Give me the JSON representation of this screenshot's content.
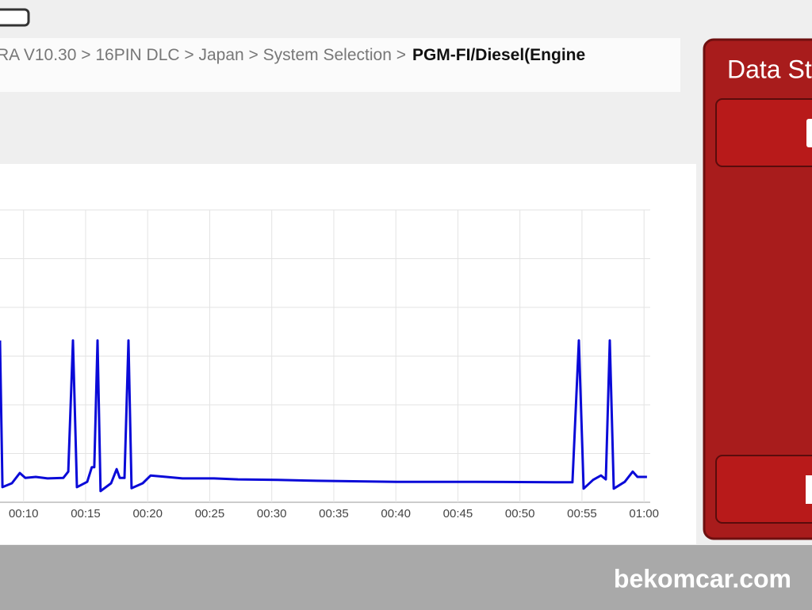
{
  "breadcrumb": {
    "path": "RA V10.30 > 16PIN DLC > Japan > System Selection >",
    "current": "PGM-FI/Diesel(Engine"
  },
  "side_panel": {
    "title": "Data St"
  },
  "chart": {
    "type": "line",
    "color": "#0a0ad8",
    "x": [
      8.1,
      8.3,
      9.06,
      9.7,
      10.14,
      10.98,
      11.93,
      13.2,
      13.6,
      13.98,
      14.3,
      15.13,
      15.5,
      15.7,
      15.96,
      16.2,
      17.05,
      17.5,
      17.75,
      18.13,
      18.45,
      18.7,
      19.6,
      20.24,
      21.5,
      22.8,
      25.35,
      27.27,
      30.46,
      33.66,
      40.05,
      46.44,
      52.83,
      54.23,
      54.75,
      55.13,
      55.9,
      56.53,
      56.92,
      57.24,
      57.56,
      58.45,
      59.09,
      59.47,
      60.24
    ],
    "values": [
      3.32,
      0.31,
      0.39,
      0.6,
      0.5,
      0.52,
      0.49,
      0.5,
      0.63,
      3.32,
      0.31,
      0.42,
      0.72,
      0.72,
      3.32,
      0.23,
      0.39,
      0.68,
      0.5,
      0.5,
      3.32,
      0.29,
      0.39,
      0.55,
      0.52,
      0.49,
      0.49,
      0.47,
      0.46,
      0.44,
      0.42,
      0.42,
      0.41,
      0.41,
      3.32,
      0.28,
      0.46,
      0.55,
      0.47,
      3.32,
      0.28,
      0.42,
      0.63,
      0.52,
      0.52
    ],
    "xlim": [
      8.1,
      60.5
    ],
    "ylim": [
      0,
      6
    ],
    "xticks": [
      {
        "value": 10,
        "label": "00:10"
      },
      {
        "value": 15,
        "label": "00:15"
      },
      {
        "value": 20,
        "label": "00:20"
      },
      {
        "value": 25,
        "label": "00:25"
      },
      {
        "value": 30,
        "label": "00:30"
      },
      {
        "value": 35,
        "label": "00:35"
      },
      {
        "value": 40,
        "label": "00:40"
      },
      {
        "value": 45,
        "label": "00:45"
      },
      {
        "value": 50,
        "label": "00:50"
      },
      {
        "value": 55,
        "label": "00:55"
      },
      {
        "value": 60,
        "label": "01:00"
      }
    ],
    "ygrid": [
      0,
      1,
      2,
      3,
      4,
      5,
      6
    ],
    "grid": true
  },
  "watermark": "bekomcar.com"
}
